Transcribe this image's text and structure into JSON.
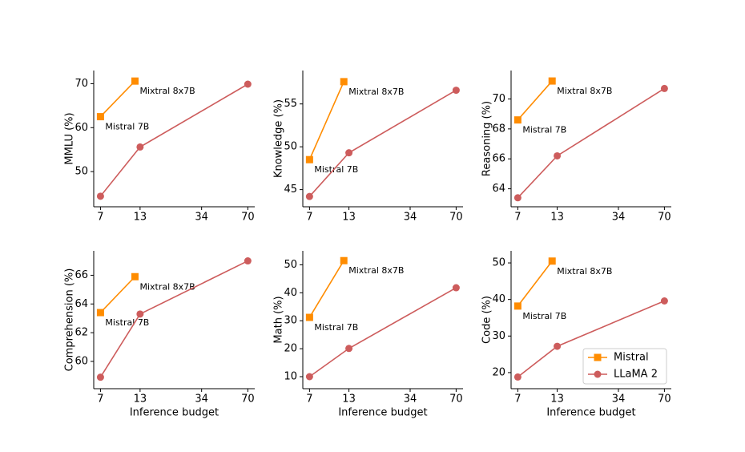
{
  "chart_data": [
    {
      "type": "line",
      "ylabel": "MMLU (%)",
      "xscale": "log",
      "xlim": [
        6.3,
        78
      ],
      "xticks": [
        7,
        13,
        34,
        70
      ],
      "ylim": [
        42,
        73
      ],
      "yticks": [
        50,
        60,
        70
      ],
      "series": [
        {
          "name": "Mistral",
          "color": "#ff8c00",
          "marker": "square",
          "x": [
            7,
            12
          ],
          "values": [
            62.5,
            70.6
          ],
          "labels": [
            "Mistral 7B",
            "Mixtral 8x7B"
          ]
        },
        {
          "name": "LLaMA 2",
          "color": "#cd5c5c",
          "marker": "circle",
          "x": [
            7,
            13,
            70
          ],
          "values": [
            44.4,
            55.6,
            69.9
          ]
        }
      ]
    },
    {
      "type": "line",
      "ylabel": "Knowledge (%)",
      "xscale": "log",
      "xlim": [
        6.3,
        78
      ],
      "xticks": [
        7,
        13,
        34,
        70
      ],
      "ylim": [
        43,
        58.9
      ],
      "yticks": [
        45,
        50,
        55
      ],
      "series": [
        {
          "name": "Mistral",
          "color": "#ff8c00",
          "marker": "square",
          "x": [
            7,
            12
          ],
          "values": [
            48.5,
            57.6
          ],
          "labels": [
            "Mistral 7B",
            "Mixtral 8x7B"
          ]
        },
        {
          "name": "LLaMA 2",
          "color": "#cd5c5c",
          "marker": "circle",
          "x": [
            7,
            13,
            70
          ],
          "values": [
            44.2,
            49.3,
            56.6
          ]
        }
      ]
    },
    {
      "type": "line",
      "ylabel": "Reasoning (%)",
      "xscale": "log",
      "xlim": [
        6.3,
        78
      ],
      "xticks": [
        7,
        13,
        34,
        70
      ],
      "ylim": [
        62.8,
        71.9
      ],
      "yticks": [
        64,
        66,
        68,
        70
      ],
      "series": [
        {
          "name": "Mistral",
          "color": "#ff8c00",
          "marker": "square",
          "x": [
            7,
            12
          ],
          "values": [
            68.6,
            71.2
          ],
          "labels": [
            "Mistral 7B",
            "Mixtral 8x7B"
          ]
        },
        {
          "name": "LLaMA 2",
          "color": "#cd5c5c",
          "marker": "circle",
          "x": [
            7,
            13,
            70
          ],
          "values": [
            63.4,
            66.2,
            70.7
          ]
        }
      ]
    },
    {
      "type": "line",
      "ylabel": "Comprehension (%)",
      "xlabel": "Inference budget",
      "xscale": "log",
      "xlim": [
        6.3,
        78
      ],
      "xticks": [
        7,
        13,
        34,
        70
      ],
      "ylim": [
        58.1,
        67.7
      ],
      "yticks": [
        60,
        62,
        64,
        66
      ],
      "series": [
        {
          "name": "Mistral",
          "color": "#ff8c00",
          "marker": "square",
          "x": [
            7,
            12
          ],
          "values": [
            63.4,
            65.9
          ],
          "labels": [
            "Mistral 7B",
            "Mixtral 8x7B"
          ]
        },
        {
          "name": "LLaMA 2",
          "color": "#cd5c5c",
          "marker": "circle",
          "x": [
            7,
            13,
            70
          ],
          "values": [
            58.9,
            63.3,
            67.0
          ]
        }
      ]
    },
    {
      "type": "line",
      "ylabel": "Math (%)",
      "xlabel": "Inference budget",
      "xscale": "log",
      "xlim": [
        6.3,
        78
      ],
      "xticks": [
        7,
        13,
        34,
        70
      ],
      "ylim": [
        5.7,
        55
      ],
      "yticks": [
        10,
        20,
        30,
        40,
        50
      ],
      "series": [
        {
          "name": "Mistral",
          "color": "#ff8c00",
          "marker": "square",
          "x": [
            7,
            12
          ],
          "values": [
            31.2,
            51.5
          ],
          "labels": [
            "Mistral 7B",
            "Mixtral 8x7B"
          ]
        },
        {
          "name": "LLaMA 2",
          "color": "#cd5c5c",
          "marker": "circle",
          "x": [
            7,
            13,
            70
          ],
          "values": [
            10,
            20.1,
            41.8
          ]
        }
      ]
    },
    {
      "type": "line",
      "ylabel": "Code (%)",
      "xlabel": "Inference budget",
      "xscale": "log",
      "xlim": [
        6.3,
        78
      ],
      "xticks": [
        7,
        13,
        34,
        70
      ],
      "ylim": [
        15.6,
        53.3
      ],
      "yticks": [
        20,
        30,
        40,
        50
      ],
      "legend": "lower right",
      "series": [
        {
          "name": "Mistral",
          "color": "#ff8c00",
          "marker": "square",
          "x": [
            7,
            12
          ],
          "values": [
            38.2,
            50.5
          ],
          "labels": [
            "Mistral 7B",
            "Mixtral 8x7B"
          ]
        },
        {
          "name": "LLaMA 2",
          "color": "#cd5c5c",
          "marker": "circle",
          "x": [
            7,
            13,
            70
          ],
          "values": [
            18.8,
            27.2,
            39.6
          ]
        }
      ]
    }
  ]
}
